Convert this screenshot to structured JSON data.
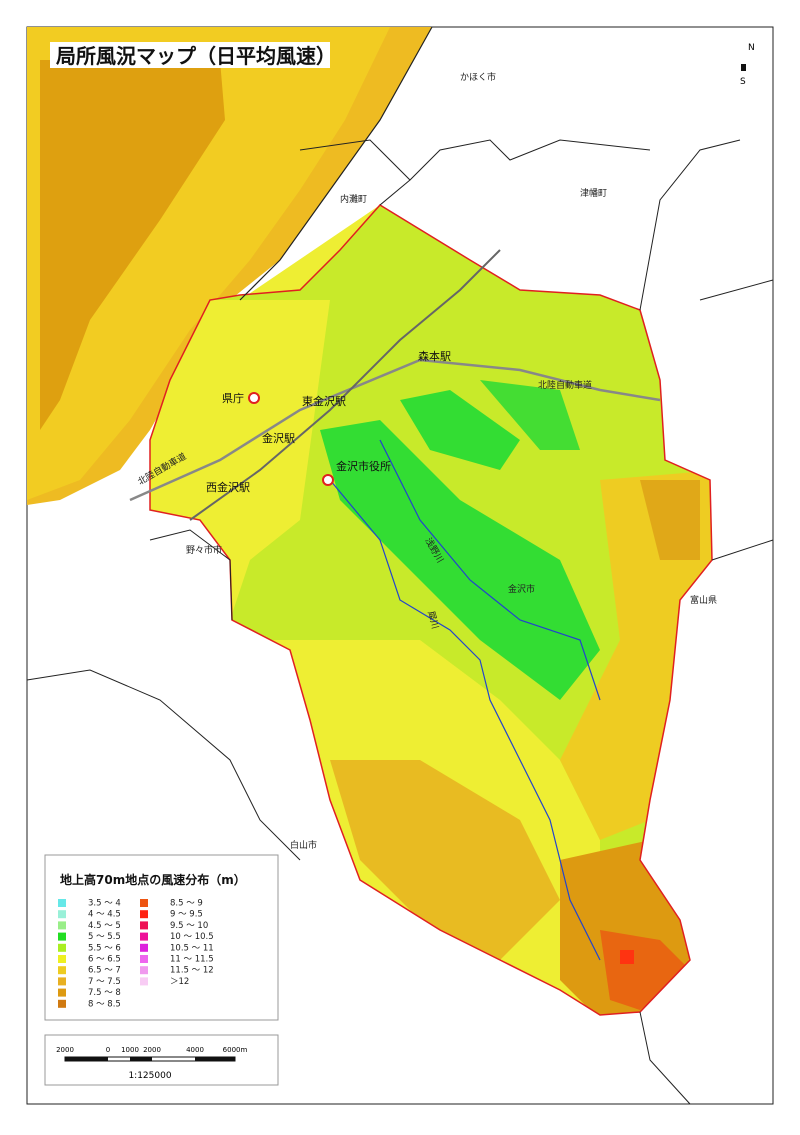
{
  "title": "局所風況マップ（日平均風速）",
  "compass": {
    "north": "N",
    "south": "S"
  },
  "places": [
    "かほく市",
    "津幡町",
    "内灘町",
    "森本駅",
    "北陸自動車道",
    "県庁",
    "東金沢駅",
    "金沢駅",
    "北陸自動車道",
    "金沢市役所",
    "西金沢駅",
    "野々市市",
    "浅野川",
    "犀川",
    "金沢市",
    "富山県",
    "白山市"
  ],
  "legend": {
    "title": "地上高70m地点の風速分布（m）",
    "items": [
      {
        "label": "3.5 ～ 4",
        "color": "#66e8e8"
      },
      {
        "label": "4 ～ 4.5",
        "color": "#99f0d8"
      },
      {
        "label": "4.5 ～ 5",
        "color": "#99ee88"
      },
      {
        "label": "5 ～ 5.5",
        "color": "#22dd22"
      },
      {
        "label": "5.5 ～ 6",
        "color": "#aaee22"
      },
      {
        "label": "6 ～ 6.5",
        "color": "#eef022"
      },
      {
        "label": "6.5 ～ 7",
        "color": "#eecc22"
      },
      {
        "label": "7 ～ 7.5",
        "color": "#e8b022"
      },
      {
        "label": "7.5 ～ 8",
        "color": "#dd9a11"
      },
      {
        "label": "8 ～ 8.5",
        "color": "#d07a11"
      },
      {
        "label": "8.5 ～ 9",
        "color": "#ee5511"
      },
      {
        "label": "9 ～ 9.5",
        "color": "#ff2211"
      },
      {
        "label": "9.5 ～ 10",
        "color": "#ee1155"
      },
      {
        "label": "10 ～ 10.5",
        "color": "#ee1199"
      },
      {
        "label": "10.5 ～ 11",
        "color": "#dd22dd"
      },
      {
        "label": "11 ～ 11.5",
        "color": "#ee66ee"
      },
      {
        "label": "11.5 ～ 12",
        "color": "#f099ee"
      },
      {
        "label": "＞12",
        "color": "#f8ccf4"
      }
    ]
  },
  "scale": {
    "labels": [
      "2000",
      "0",
      "1000",
      "2000",
      "4000",
      "6000m"
    ],
    "ratio": "1:125000"
  }
}
